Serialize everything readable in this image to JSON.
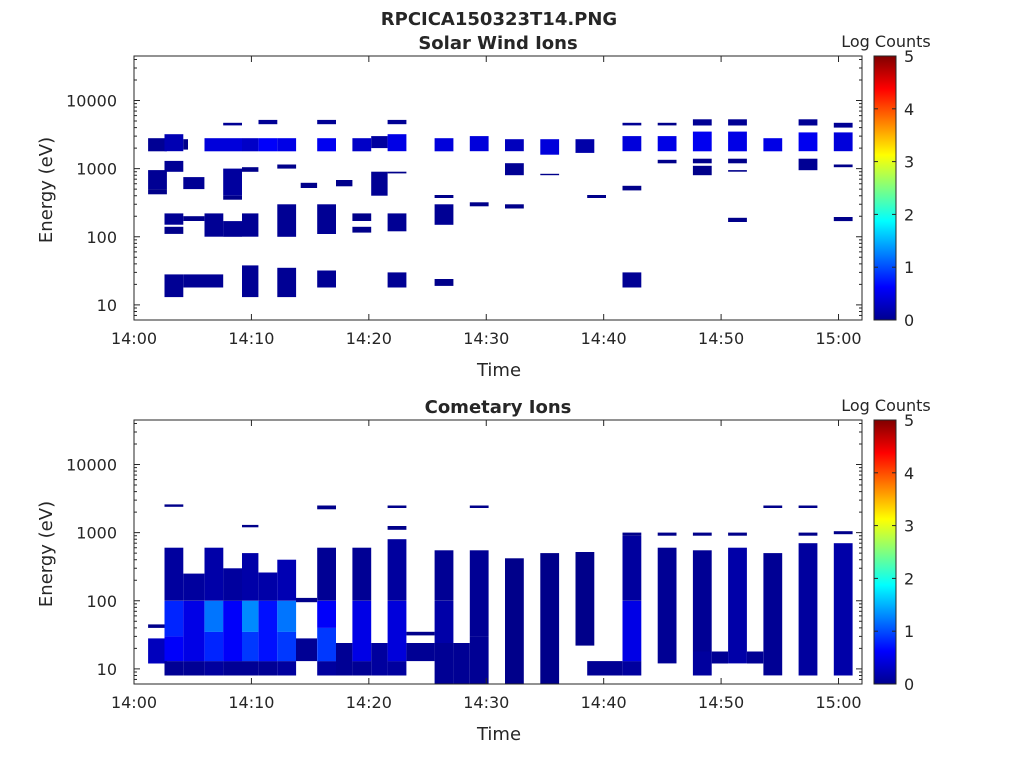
{
  "figure_title": "RPCICA150323T14.PNG",
  "chart_data": [
    {
      "type": "heatmap",
      "title": "Solar Wind Ions",
      "xlabel": "Time",
      "ylabel": "Energy (eV)",
      "yscale": "log",
      "ylim": [
        6,
        45000
      ],
      "xlim_minutes": [
        0,
        62
      ],
      "x_ticks": [
        {
          "v": 0,
          "label": "14:00"
        },
        {
          "v": 10,
          "label": "14:10"
        },
        {
          "v": 20,
          "label": "14:20"
        },
        {
          "v": 30,
          "label": "14:30"
        },
        {
          "v": 40,
          "label": "14:40"
        },
        {
          "v": 50,
          "label": "14:50"
        },
        {
          "v": 60,
          "label": "15:00"
        }
      ],
      "y_ticks": [
        {
          "v": 10,
          "label": "10"
        },
        {
          "v": 100,
          "label": "100"
        },
        {
          "v": 1000,
          "label": "1000"
        },
        {
          "v": 10000,
          "label": "10000"
        }
      ],
      "colorbar": {
        "label": "Log Counts",
        "range": [
          0,
          5
        ],
        "ticks": [
          0,
          1,
          2,
          3,
          4,
          5
        ]
      },
      "grid": false,
      "cells": [
        [
          1.2,
          2.8,
          1800,
          2800,
          0.1
        ],
        [
          2.6,
          4.2,
          1800,
          3200,
          0.25
        ],
        [
          4.2,
          4.6,
          1900,
          2700,
          0.05
        ],
        [
          6.0,
          9.2,
          1800,
          2800,
          0.45
        ],
        [
          9.2,
          10.6,
          1800,
          2800,
          0.35
        ],
        [
          10.6,
          12.2,
          1800,
          2800,
          0.6
        ],
        [
          12.2,
          13.8,
          1800,
          2800,
          0.5
        ],
        [
          15.6,
          17.2,
          1800,
          2800,
          0.55
        ],
        [
          18.6,
          20.2,
          1800,
          2800,
          0.35
        ],
        [
          20.2,
          21.6,
          2000,
          3000,
          0.15
        ],
        [
          21.6,
          23.2,
          1800,
          3200,
          0.5
        ],
        [
          25.6,
          27.2,
          1800,
          2800,
          0.45
        ],
        [
          28.6,
          30.2,
          1800,
          3000,
          0.45
        ],
        [
          31.6,
          33.2,
          1800,
          2700,
          0.3
        ],
        [
          34.6,
          36.2,
          1600,
          2700,
          0.45
        ],
        [
          37.6,
          39.2,
          1700,
          2700,
          0.2
        ],
        [
          41.6,
          43.2,
          1800,
          3000,
          0.45
        ],
        [
          44.6,
          46.2,
          1800,
          3000,
          0.5
        ],
        [
          47.6,
          49.2,
          1800,
          3500,
          0.55
        ],
        [
          50.6,
          52.2,
          1800,
          3500,
          0.5
        ],
        [
          53.6,
          55.2,
          1800,
          2800,
          0.5
        ],
        [
          56.6,
          58.2,
          1800,
          3400,
          0.55
        ],
        [
          59.6,
          61.2,
          1800,
          3400,
          0.45
        ],
        [
          7.6,
          9.2,
          4300,
          4700,
          0.1
        ],
        [
          10.6,
          12.2,
          4500,
          5200,
          0.1
        ],
        [
          15.6,
          17.2,
          4500,
          5200,
          0.1
        ],
        [
          21.6,
          23.2,
          4500,
          5200,
          0.1
        ],
        [
          41.6,
          43.2,
          4300,
          4700,
          0.1
        ],
        [
          44.6,
          46.2,
          4300,
          4700,
          0.05
        ],
        [
          47.6,
          49.2,
          4300,
          5300,
          0.1
        ],
        [
          50.6,
          52.2,
          4300,
          5300,
          0.1
        ],
        [
          56.6,
          58.2,
          4300,
          5300,
          0.1
        ],
        [
          59.6,
          61.2,
          4000,
          4700,
          0.1
        ],
        [
          2.6,
          4.2,
          900,
          1300,
          0.1
        ],
        [
          4.2,
          6.0,
          500,
          750,
          0.1
        ],
        [
          7.6,
          9.2,
          400,
          1000,
          0.15
        ],
        [
          9.2,
          10.6,
          900,
          1050,
          0.05
        ],
        [
          12.2,
          13.8,
          1000,
          1150,
          0.05
        ],
        [
          14.2,
          15.6,
          520,
          620,
          0.05
        ],
        [
          17.2,
          18.6,
          550,
          680,
          0.05
        ],
        [
          20.2,
          21.6,
          400,
          900,
          0.1
        ],
        [
          31.6,
          33.2,
          800,
          1200,
          0.1
        ],
        [
          34.6,
          36.2,
          800,
          840,
          0.05
        ],
        [
          47.6,
          49.2,
          1200,
          1400,
          0.05
        ],
        [
          47.6,
          49.2,
          800,
          1100,
          0.05
        ],
        [
          50.6,
          52.2,
          1200,
          1400,
          0.05
        ],
        [
          50.6,
          52.2,
          900,
          950,
          0.05
        ],
        [
          56.6,
          58.2,
          950,
          1400,
          0.1
        ],
        [
          59.6,
          61.2,
          1050,
          1150,
          0.05
        ],
        [
          44.6,
          46.2,
          1200,
          1350,
          0.05
        ],
        [
          1.2,
          2.8,
          500,
          950,
          0.1
        ],
        [
          1.2,
          2.8,
          420,
          500,
          0.05
        ],
        [
          7.6,
          9.2,
          350,
          400,
          0.05
        ],
        [
          21.6,
          23.2,
          850,
          900,
          0.05
        ],
        [
          25.6,
          27.2,
          370,
          410,
          0.05
        ],
        [
          28.6,
          30.2,
          280,
          320,
          0.05
        ],
        [
          31.6,
          33.2,
          260,
          300,
          0.05
        ],
        [
          38.6,
          40.2,
          370,
          410,
          0.05
        ],
        [
          41.6,
          43.2,
          480,
          560,
          0.05
        ],
        [
          2.6,
          4.2,
          150,
          220,
          0.1
        ],
        [
          2.6,
          4.2,
          110,
          140,
          0.05
        ],
        [
          4.2,
          6.0,
          170,
          200,
          0.05
        ],
        [
          6.0,
          7.6,
          100,
          220,
          0.1
        ],
        [
          7.6,
          9.2,
          100,
          170,
          0.1
        ],
        [
          9.2,
          10.6,
          100,
          220,
          0.1
        ],
        [
          12.2,
          13.8,
          100,
          300,
          0.1
        ],
        [
          15.6,
          17.2,
          110,
          300,
          0.1
        ],
        [
          18.6,
          20.2,
          170,
          220,
          0.05
        ],
        [
          18.6,
          20.2,
          115,
          140,
          0.05
        ],
        [
          21.6,
          23.2,
          120,
          220,
          0.1
        ],
        [
          25.6,
          27.2,
          150,
          300,
          0.1
        ],
        [
          50.6,
          52.2,
          165,
          190,
          0.05
        ],
        [
          59.6,
          61.2,
          170,
          195,
          0.05
        ],
        [
          2.6,
          4.2,
          13,
          28,
          0.1
        ],
        [
          4.2,
          7.6,
          18,
          28,
          0.1
        ],
        [
          9.2,
          10.6,
          13,
          38,
          0.1
        ],
        [
          12.2,
          13.8,
          13,
          35,
          0.1
        ],
        [
          15.6,
          17.2,
          18,
          32,
          0.1
        ],
        [
          21.6,
          23.2,
          18,
          30,
          0.1
        ],
        [
          25.6,
          27.2,
          19,
          24,
          0.05
        ],
        [
          41.6,
          43.2,
          18,
          30,
          0.1
        ]
      ]
    },
    {
      "type": "heatmap",
      "title": "Cometary Ions",
      "xlabel": "Time",
      "ylabel": "Energy (eV)",
      "yscale": "log",
      "ylim": [
        6,
        45000
      ],
      "xlim_minutes": [
        0,
        62
      ],
      "x_ticks": [
        {
          "v": 0,
          "label": "14:00"
        },
        {
          "v": 10,
          "label": "14:10"
        },
        {
          "v": 20,
          "label": "14:20"
        },
        {
          "v": 30,
          "label": "14:30"
        },
        {
          "v": 40,
          "label": "14:40"
        },
        {
          "v": 50,
          "label": "14:50"
        },
        {
          "v": 60,
          "label": "15:00"
        }
      ],
      "y_ticks": [
        {
          "v": 10,
          "label": "10"
        },
        {
          "v": 100,
          "label": "100"
        },
        {
          "v": 1000,
          "label": "1000"
        },
        {
          "v": 10000,
          "label": "10000"
        }
      ],
      "colorbar": {
        "label": "Log Counts",
        "range": [
          0,
          5
        ],
        "ticks": [
          0,
          1,
          2,
          3,
          4,
          5
        ]
      },
      "grid": false,
      "cells": [
        [
          1.2,
          2.8,
          12,
          28,
          0.3
        ],
        [
          1.2,
          2.8,
          40,
          45,
          0.05
        ],
        [
          2.6,
          4.2,
          8,
          13,
          0.1
        ],
        [
          2.6,
          4.2,
          13,
          30,
          0.6
        ],
        [
          2.6,
          4.2,
          30,
          100,
          0.8
        ],
        [
          2.6,
          4.2,
          100,
          600,
          0.15
        ],
        [
          4.2,
          6.0,
          8,
          13,
          0.1
        ],
        [
          4.2,
          6.0,
          13,
          100,
          0.5
        ],
        [
          4.2,
          6.0,
          100,
          250,
          0.15
        ],
        [
          6.0,
          7.6,
          8,
          13,
          0.15
        ],
        [
          6.0,
          7.6,
          13,
          35,
          0.8
        ],
        [
          6.0,
          7.6,
          35,
          100,
          1.2
        ],
        [
          6.0,
          7.6,
          100,
          600,
          0.2
        ],
        [
          7.6,
          9.2,
          8,
          13,
          0.1
        ],
        [
          7.6,
          9.2,
          13,
          100,
          0.6
        ],
        [
          7.6,
          9.2,
          100,
          300,
          0.15
        ],
        [
          9.2,
          10.6,
          8,
          13,
          0.1
        ],
        [
          9.2,
          10.6,
          13,
          35,
          0.9
        ],
        [
          9.2,
          10.6,
          35,
          100,
          1.3
        ],
        [
          9.2,
          10.6,
          100,
          500,
          0.2
        ],
        [
          10.6,
          12.2,
          8,
          13,
          0.1
        ],
        [
          10.6,
          12.2,
          13,
          100,
          0.7
        ],
        [
          10.6,
          12.2,
          100,
          260,
          0.2
        ],
        [
          12.2,
          13.8,
          8,
          13,
          0.15
        ],
        [
          12.2,
          13.8,
          13,
          35,
          0.9
        ],
        [
          12.2,
          13.8,
          35,
          100,
          1.2
        ],
        [
          12.2,
          13.8,
          100,
          400,
          0.25
        ],
        [
          13.8,
          15.6,
          13,
          28,
          0.1
        ],
        [
          13.8,
          15.6,
          95,
          110,
          0.05
        ],
        [
          15.6,
          17.2,
          8,
          13,
          0.15
        ],
        [
          15.6,
          17.2,
          13,
          40,
          0.9
        ],
        [
          15.6,
          17.2,
          40,
          100,
          0.6
        ],
        [
          15.6,
          17.2,
          100,
          600,
          0.1
        ],
        [
          17.2,
          18.6,
          8,
          24,
          0.1
        ],
        [
          18.6,
          20.2,
          8,
          13,
          0.1
        ],
        [
          18.6,
          20.2,
          13,
          100,
          0.5
        ],
        [
          18.6,
          20.2,
          100,
          600,
          0.1
        ],
        [
          20.2,
          21.6,
          8,
          24,
          0.15
        ],
        [
          21.6,
          23.2,
          8,
          13,
          0.15
        ],
        [
          21.6,
          23.2,
          13,
          100,
          0.45
        ],
        [
          21.6,
          23.2,
          100,
          800,
          0.15
        ],
        [
          23.2,
          25.6,
          13,
          24,
          0.1
        ],
        [
          23.2,
          25.6,
          31,
          35,
          0.05
        ],
        [
          25.6,
          27.2,
          6,
          24,
          0.1
        ],
        [
          25.6,
          27.2,
          24,
          100,
          0.2
        ],
        [
          25.6,
          27.2,
          100,
          550,
          0.1
        ],
        [
          27.2,
          28.6,
          6,
          24,
          0.1
        ],
        [
          28.6,
          30.2,
          6,
          30,
          0.1
        ],
        [
          28.6,
          30.2,
          30,
          550,
          0.1
        ],
        [
          31.6,
          33.2,
          6,
          420,
          0.05
        ],
        [
          34.6,
          36.2,
          6,
          500,
          0.05
        ],
        [
          37.6,
          39.2,
          22,
          520,
          0.05
        ],
        [
          38.6,
          40.2,
          8,
          13,
          0.1
        ],
        [
          40.2,
          41.6,
          8,
          13,
          0.1
        ],
        [
          41.6,
          43.2,
          8,
          13,
          0.15
        ],
        [
          41.6,
          43.2,
          13,
          100,
          0.5
        ],
        [
          41.6,
          43.2,
          100,
          900,
          0.15
        ],
        [
          44.6,
          46.2,
          12,
          600,
          0.1
        ],
        [
          47.6,
          49.2,
          8,
          18,
          0.15
        ],
        [
          47.6,
          49.2,
          18,
          550,
          0.1
        ],
        [
          49.2,
          50.6,
          12,
          18,
          0.1
        ],
        [
          50.6,
          52.2,
          12,
          600,
          0.2
        ],
        [
          52.2,
          53.6,
          12,
          18,
          0.1
        ],
        [
          53.6,
          55.2,
          8,
          500,
          0.1
        ],
        [
          56.6,
          58.2,
          8,
          700,
          0.15
        ],
        [
          59.6,
          61.2,
          8,
          700,
          0.2
        ],
        [
          2.6,
          4.2,
          2400,
          2600,
          0.05
        ],
        [
          9.2,
          10.6,
          1200,
          1300,
          0.05
        ],
        [
          15.6,
          17.2,
          2200,
          2500,
          0.05
        ],
        [
          21.6,
          23.2,
          2300,
          2500,
          0.05
        ],
        [
          21.6,
          23.2,
          1100,
          1250,
          0.05
        ],
        [
          28.6,
          30.2,
          2300,
          2500,
          0.05
        ],
        [
          53.6,
          55.2,
          2300,
          2500,
          0.05
        ],
        [
          56.6,
          58.2,
          2300,
          2500,
          0.05
        ],
        [
          41.6,
          43.2,
          900,
          1000,
          0.05
        ],
        [
          44.6,
          46.2,
          900,
          1000,
          0.05
        ],
        [
          47.6,
          49.2,
          900,
          1000,
          0.05
        ],
        [
          50.6,
          52.2,
          900,
          1000,
          0.05
        ],
        [
          56.6,
          58.2,
          900,
          1000,
          0.05
        ],
        [
          59.6,
          61.2,
          950,
          1050,
          0.05
        ]
      ]
    }
  ]
}
